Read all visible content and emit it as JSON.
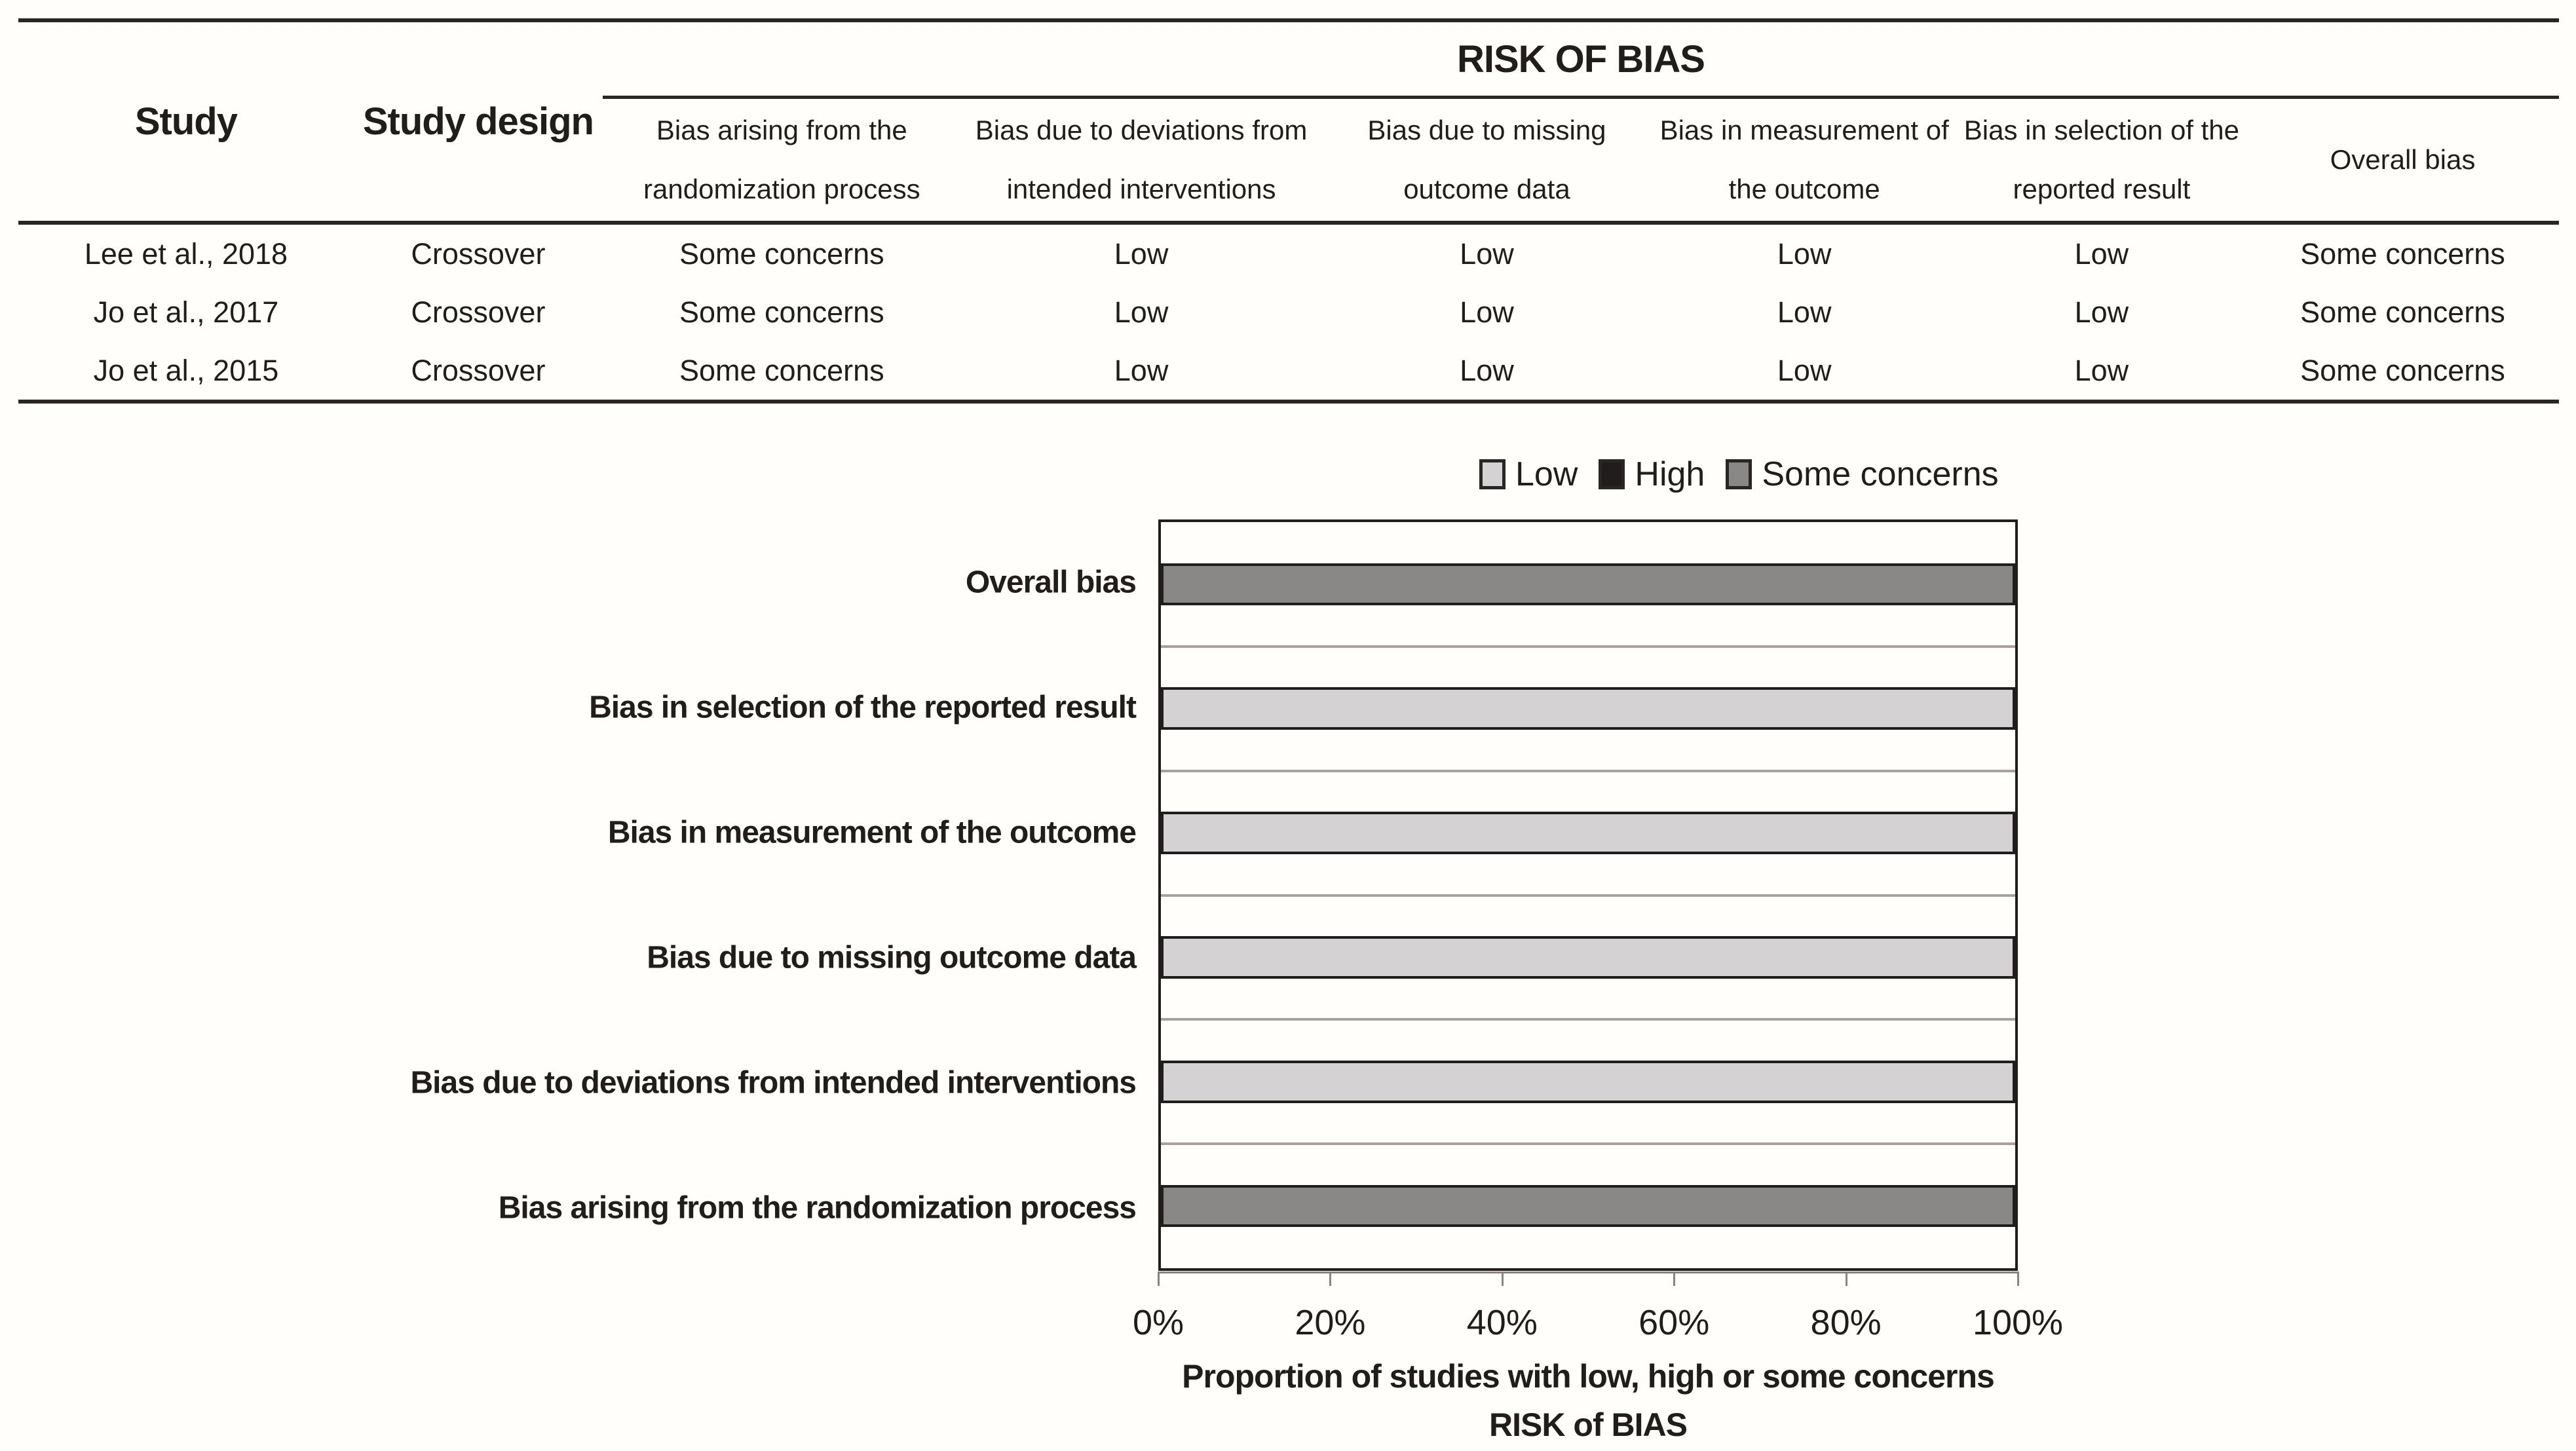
{
  "table": {
    "header": {
      "study": "Study",
      "study_design": "Study design",
      "risk_of_bias": "RISK OF BIAS",
      "columns": [
        "Bias arising from the randomization process",
        "Bias due to deviations from intended interventions",
        "Bias due to missing outcome data",
        "Bias in measurement of the outcome",
        "Bias in selection of the reported result",
        "Overall bias"
      ]
    },
    "rows": [
      {
        "study": "Lee et al., 2018",
        "design": "Crossover",
        "values": [
          "Some concerns",
          "Low",
          "Low",
          "Low",
          "Low",
          "Some concerns"
        ]
      },
      {
        "study": "Jo et al., 2017",
        "design": "Crossover",
        "values": [
          "Some concerns",
          "Low",
          "Low",
          "Low",
          "Low",
          "Some concerns"
        ]
      },
      {
        "study": "Jo et al., 2015",
        "design": "Crossover",
        "values": [
          "Some concerns",
          "Low",
          "Low",
          "Low",
          "Low",
          "Some concerns"
        ]
      }
    ]
  },
  "chart_data": {
    "type": "bar",
    "orientation": "horizontal",
    "stacked_percent": true,
    "grid": "category-boundaries",
    "legend_position": "top",
    "categories": [
      "Overall bias",
      "Bias in selection of the reported result",
      "Bias in measurement of the outcome",
      "Bias due to missing outcome data",
      "Bias due to deviations from intended interventions",
      "Bias arising from the randomization process"
    ],
    "series": [
      {
        "name": "Low",
        "color": "#d5d2d3",
        "values": [
          0,
          100,
          100,
          100,
          100,
          0
        ]
      },
      {
        "name": "High",
        "color": "#211d1c",
        "values": [
          0,
          0,
          0,
          0,
          0,
          0
        ]
      },
      {
        "name": "Some concerns",
        "color": "#898886",
        "values": [
          100,
          0,
          0,
          0,
          0,
          100
        ]
      }
    ],
    "x_ticks": [
      "0%",
      "20%",
      "40%",
      "60%",
      "80%",
      "100%"
    ],
    "xlim": [
      0,
      100
    ],
    "xlabel_line1": "Proportion of studies with low, high or some concerns",
    "xlabel_line2": "RISK of BIAS"
  },
  "colors": {
    "ink": "#211d1c",
    "rule": "#2b2625",
    "low_fill": "#d5d2d3",
    "high_fill": "#211d1c",
    "some_concerns_fill": "#898886",
    "gridline": "#aba09f",
    "axis_gray": "#8a8381",
    "background": "#fffefa"
  }
}
